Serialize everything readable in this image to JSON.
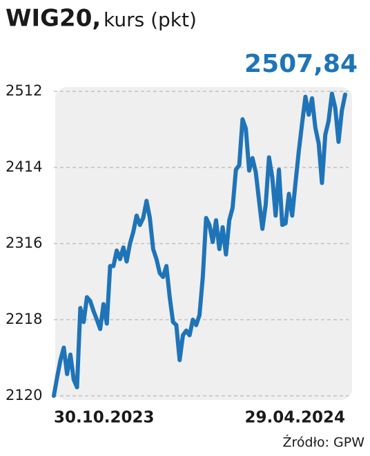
{
  "chart_data": {
    "type": "line",
    "title": "WIG20,",
    "subtitle": "kurs (pkt)",
    "source": "Źródło: GPW",
    "categories": [
      "30.10.2023",
      null,
      null,
      null,
      null,
      null,
      null,
      null,
      null,
      null,
      null,
      null,
      null,
      null,
      null,
      null,
      null,
      null,
      null,
      null,
      null,
      null,
      null,
      null,
      null,
      null,
      null,
      null,
      null,
      null,
      null,
      null,
      null,
      null,
      null,
      null,
      null,
      null,
      null,
      null,
      null,
      null,
      null,
      null,
      null,
      null,
      null,
      null,
      null,
      null,
      null,
      null,
      null,
      null,
      null,
      null,
      null,
      null,
      null,
      null,
      null,
      null,
      null,
      null,
      null,
      null,
      null,
      null,
      null,
      null,
      null,
      null,
      null,
      null,
      null,
      null,
      null,
      null,
      null,
      null,
      null,
      null,
      null,
      null,
      null,
      null,
      null,
      null,
      "29.04.2024"
    ],
    "values": [
      2120,
      2144,
      2166,
      2182,
      2148,
      2173,
      2141,
      2131,
      2233,
      2215,
      2247,
      2242,
      2229,
      2218,
      2206,
      2238,
      2213,
      2287,
      2287,
      2307,
      2296,
      2311,
      2293,
      2316,
      2331,
      2352,
      2340,
      2349,
      2371,
      2349,
      2309,
      2296,
      2278,
      2273,
      2287,
      2247,
      2215,
      2211,
      2166,
      2198,
      2204,
      2198,
      2218,
      2211,
      2224,
      2273,
      2349,
      2340,
      2318,
      2346,
      2309,
      2337,
      2302,
      2346,
      2362,
      2411,
      2417,
      2476,
      2464,
      2410,
      2426,
      2408,
      2371,
      2335,
      2366,
      2427,
      2401,
      2352,
      2411,
      2340,
      2342,
      2380,
      2352,
      2394,
      2435,
      2471,
      2505,
      2482,
      2503,
      2465,
      2445,
      2394,
      2456,
      2474,
      2509,
      2491,
      2447,
      2487,
      2507.84
    ],
    "value_labels": [
      null,
      null,
      null,
      null,
      null,
      null,
      null,
      null,
      null,
      null,
      null,
      null,
      null,
      null,
      null,
      null,
      null,
      null,
      null,
      null,
      null,
      null,
      null,
      null,
      null,
      null,
      null,
      null,
      null,
      null,
      null,
      null,
      null,
      null,
      null,
      null,
      null,
      null,
      null,
      null,
      null,
      null,
      null,
      null,
      null,
      null,
      null,
      null,
      null,
      null,
      null,
      null,
      null,
      null,
      null,
      null,
      null,
      null,
      null,
      null,
      null,
      null,
      null,
      null,
      null,
      null,
      null,
      null,
      null,
      null,
      null,
      null,
      null,
      null,
      null,
      null,
      null,
      null,
      null,
      null,
      null,
      null,
      null,
      null,
      null,
      null,
      null,
      null,
      "2507,84"
    ],
    "color": "#1f74b8",
    "ylim": [
      2120,
      2512
    ],
    "yticks": [
      2120,
      2218,
      2316,
      2414,
      2512
    ],
    "grid": true
  }
}
